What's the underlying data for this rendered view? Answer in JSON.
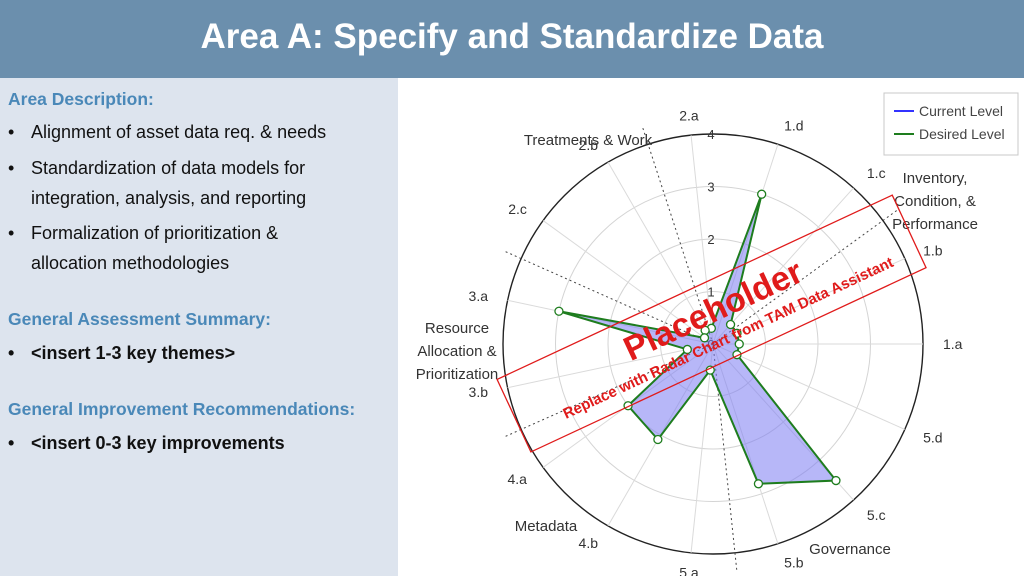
{
  "header": {
    "title": "Area A: Specify and Standardize Data"
  },
  "left": {
    "description_title": "Area Description:",
    "description_items": [
      "Alignment of asset data req. & needs",
      "Standardization of data models for integration, analysis, and reporting",
      "Formalization of prioritization & allocation methodologies"
    ],
    "summary_title": "General Assessment Summary:",
    "summary_items": [
      "<insert 1-3 key themes>"
    ],
    "improvement_title": "General Improvement Recommendations:",
    "improvement_items": [
      "<insert 0-3 key improvements"
    ],
    "bullet_char": "•"
  },
  "chart_data": {
    "type": "radar",
    "categories": [
      "1.a",
      "1.b",
      "1.c",
      "1.d",
      "2.a",
      "2.b",
      "2.c",
      "3.a",
      "3.b",
      "4.a",
      "4.b",
      "5.a",
      "5.b",
      "5.c",
      "5.d"
    ],
    "radial_ticks": [
      "0",
      "1",
      "2",
      "3",
      "4"
    ],
    "rlim": [
      0,
      4
    ],
    "series": [
      {
        "name": "Current Level",
        "color": "#3333ff",
        "values": [
          0.5,
          0.5,
          0.5,
          3,
          0.3,
          0.3,
          0.2,
          3,
          0.5,
          2,
          2.1,
          0.5,
          2.8,
          3.5,
          0.5
        ]
      },
      {
        "name": "Desired Level",
        "color": "#1e7d1e",
        "values": [
          0.5,
          0.5,
          0.5,
          3,
          0.3,
          0.3,
          0.2,
          3,
          0.5,
          2,
          2.1,
          0.5,
          2.8,
          3.5,
          0.5
        ]
      }
    ],
    "group_labels": [
      {
        "text": "Treatments & Work",
        "lines": [
          "Treatments & Work"
        ]
      },
      {
        "text": "Inventory, Condition, & Performance",
        "lines": [
          "Inventory,",
          "Condition, &",
          "Performance"
        ]
      },
      {
        "text": "Resource Allocation & Prioritization",
        "lines": [
          "Resource",
          "Allocation &",
          "Prioritization"
        ]
      },
      {
        "text": "Metadata",
        "lines": [
          "Metadata"
        ]
      },
      {
        "text": "Governance",
        "lines": [
          "Governance"
        ]
      }
    ],
    "legend": [
      "Current Level",
      "Desired Level"
    ],
    "legend_position": "top-right",
    "fill_color": "#7b7bf2",
    "grid": true
  },
  "placeholder": {
    "title": "Placeholder",
    "subtitle": "Replace with Radar Chart from TAM Data Assistant",
    "color": "#e01b1b"
  }
}
